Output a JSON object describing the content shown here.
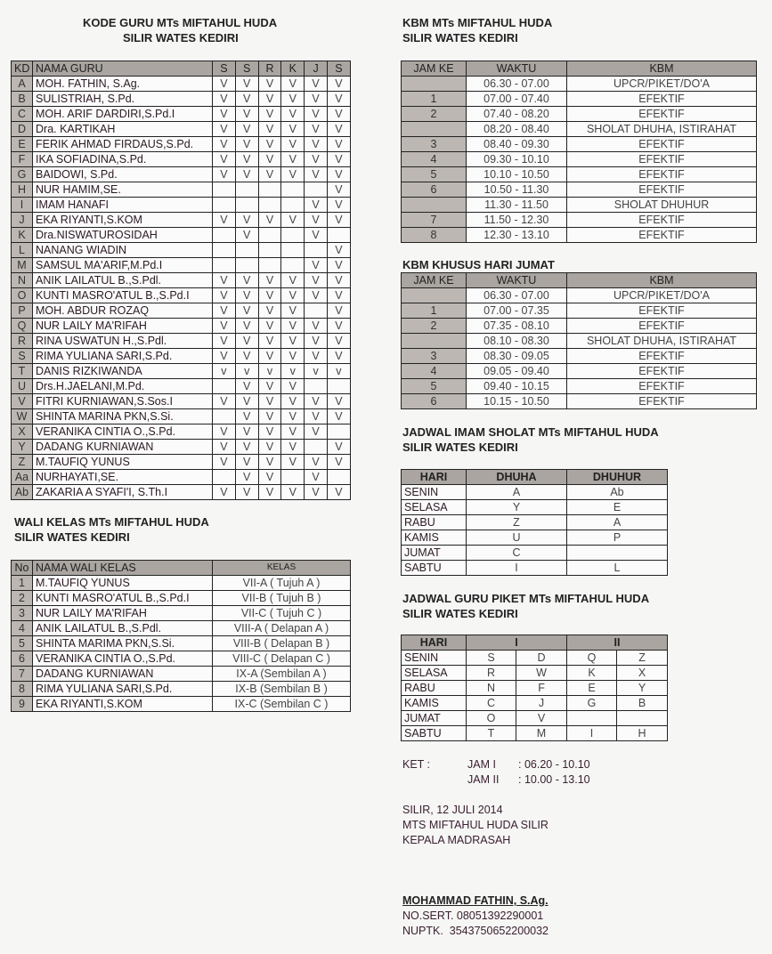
{
  "kode_guru": {
    "title1": "KODE GURU MTs MIFTAHUL HUDA",
    "title2": "SILIR WATES KEDIRI",
    "headers": [
      "KD",
      "NAMA GURU",
      "S",
      "S",
      "R",
      "K",
      "J",
      "S"
    ],
    "rows": [
      [
        "A",
        "MOH. FATHIN, S.Ag.",
        "V",
        "V",
        "V",
        "V",
        "V",
        "V"
      ],
      [
        "B",
        "SULISTRIAH, S.Pd.",
        "V",
        "V",
        "V",
        "V",
        "V",
        "V"
      ],
      [
        "C",
        "MOH. ARIF DARDIRI,S.Pd.I",
        "V",
        "V",
        "V",
        "V",
        "V",
        "V"
      ],
      [
        "D",
        "Dra. KARTIKAH",
        "V",
        "V",
        "V",
        "V",
        "V",
        "V"
      ],
      [
        "E",
        "FERIK AHMAD FIRDAUS,S.Pd.",
        "V",
        "V",
        "V",
        "V",
        "V",
        "V"
      ],
      [
        "F",
        "IKA SOFIADINA,S.Pd.",
        "V",
        "V",
        "V",
        "V",
        "V",
        "V"
      ],
      [
        "G",
        "BAIDOWI, S.Pd.",
        "V",
        "V",
        "V",
        "V",
        "V",
        "V"
      ],
      [
        "H",
        "NUR HAMIM,SE.",
        "",
        "",
        "",
        "",
        "",
        "V"
      ],
      [
        "I",
        "IMAM HANAFI",
        "",
        "",
        "",
        "",
        "V",
        "V"
      ],
      [
        "J",
        "EKA RIYANTI,S.KOM",
        "V",
        "V",
        "V",
        "V",
        "V",
        "V"
      ],
      [
        "K",
        "Dra.NISWATUROSIDAH",
        "",
        "V",
        "",
        "",
        "V",
        ""
      ],
      [
        "L",
        "NANANG WIADIN",
        "",
        "",
        "",
        "",
        "",
        "V"
      ],
      [
        "M",
        "SAMSUL MA'ARIF,M.Pd.I",
        "",
        "",
        "",
        "",
        "V",
        "V"
      ],
      [
        "N",
        "ANIK LAILATUL B.,S.Pdl.",
        "V",
        "V",
        "V",
        "V",
        "V",
        "V"
      ],
      [
        "O",
        "KUNTI MASRO'ATUL B.,S.Pd.I",
        "V",
        "V",
        "V",
        "V",
        "V",
        "V"
      ],
      [
        "P",
        "MOH. ABDUR ROZAQ",
        "V",
        "V",
        "V",
        "V",
        "",
        "V"
      ],
      [
        "Q",
        "NUR LAILY MA'RIFAH",
        "V",
        "V",
        "V",
        "V",
        "V",
        "V"
      ],
      [
        "R",
        "RINA USWATUN H.,S.Pdl.",
        "V",
        "V",
        "V",
        "V",
        "V",
        "V"
      ],
      [
        "S",
        "RIMA YULIANA SARI,S.Pd.",
        "V",
        "V",
        "V",
        "V",
        "V",
        "V"
      ],
      [
        "T",
        "DANIS RIZKIWANDA",
        "v",
        "v",
        "v",
        "v",
        "v",
        "v"
      ],
      [
        "U",
        "Drs.H.JAELANI,M.Pd.",
        "",
        "V",
        "V",
        "V",
        "",
        ""
      ],
      [
        "V",
        "FITRI KURNIAWAN,S.Sos.I",
        "V",
        "V",
        "V",
        "V",
        "V",
        "V"
      ],
      [
        "W",
        "SHINTA MARINA PKN,S.Si.",
        "",
        "V",
        "V",
        "V",
        "V",
        "V"
      ],
      [
        "X",
        "VERANIKA CINTIA O.,S.Pd.",
        "V",
        "V",
        "V",
        "V",
        "V",
        ""
      ],
      [
        "Y",
        "DADANG KURNIAWAN",
        "V",
        "V",
        "V",
        "V",
        "",
        "V"
      ],
      [
        "Z",
        "M.TAUFIQ YUNUS",
        "V",
        "V",
        "V",
        "V",
        "V",
        "V"
      ],
      [
        "Aa",
        "NURHAYATI,SE.",
        "",
        "V",
        "V",
        "",
        "V",
        ""
      ],
      [
        "Ab",
        "ZAKARIA A SYAFI'I, S.Th.I",
        "V",
        "V",
        "V",
        "V",
        "V",
        "V"
      ]
    ]
  },
  "wali_kelas": {
    "title1": "WALI KELAS MTs MIFTAHUL HUDA",
    "title2": "SILIR WATES KEDIRI",
    "headers": [
      "No",
      "NAMA WALI KELAS",
      "KELAS"
    ],
    "rows": [
      [
        "1",
        "M.TAUFIQ YUNUS",
        "VII-A ( Tujuh A )"
      ],
      [
        "2",
        "KUNTI MASRO'ATUL B.,S.Pd.I",
        "VII-B ( Tujuh B )"
      ],
      [
        "3",
        "NUR LAILY MA'RIFAH",
        "VII-C ( Tujuh C )"
      ],
      [
        "4",
        "ANIK LAILATUL B.,S.Pdl.",
        "VIII-A ( Delapan A )"
      ],
      [
        "5",
        "SHINTA MARIMA PKN,S.Si.",
        "VIII-B ( Delapan B )"
      ],
      [
        "6",
        "VERANIKA CINTIA O.,S.Pd.",
        "VIII-C ( Delapan C )"
      ],
      [
        "7",
        "DADANG KURNIAWAN",
        "IX-A (Sembilan A )"
      ],
      [
        "8",
        "RIMA YULIANA SARI,S.Pd.",
        "IX-B (Sembilan B )"
      ],
      [
        "9",
        "EKA RIYANTI,S.KOM",
        "IX-C (Sembilan C )"
      ]
    ]
  },
  "kbm": {
    "title1": "KBM MTs MIFTAHUL HUDA",
    "title2": "SILIR WATES KEDIRI",
    "headers": [
      "JAM KE",
      "WAKTU",
      "KBM"
    ],
    "rows": [
      [
        "",
        "06.30 - 07.00",
        "UPCR/PIKET/DO'A"
      ],
      [
        "1",
        "07.00 - 07.40",
        "EFEKTIF"
      ],
      [
        "2",
        "07.40 - 08.20",
        "EFEKTIF"
      ],
      [
        "",
        "08.20 - 08.40",
        "SHOLAT DHUHA, ISTIRAHAT"
      ],
      [
        "3",
        "08.40 - 09.30",
        "EFEKTIF"
      ],
      [
        "4",
        "09.30 - 10.10",
        "EFEKTIF"
      ],
      [
        "5",
        "10.10 - 10.50",
        "EFEKTIF"
      ],
      [
        "6",
        "10.50 - 11.30",
        "EFEKTIF"
      ],
      [
        "",
        "11.30 - 11.50",
        "SHOLAT DHUHUR"
      ],
      [
        "7",
        "11.50 - 12.30",
        "EFEKTIF"
      ],
      [
        "8",
        "12.30 - 13.10",
        "EFEKTIF"
      ]
    ]
  },
  "kbm_jumat": {
    "title1": "KBM KHUSUS HARI JUMAT",
    "headers": [
      "JAM KE",
      "WAKTU",
      "KBM"
    ],
    "rows": [
      [
        "",
        "06.30 - 07.00",
        "UPCR/PIKET/DO'A"
      ],
      [
        "1",
        "07.00 - 07.35",
        "EFEKTIF"
      ],
      [
        "2",
        "07.35 - 08.10",
        "EFEKTIF"
      ],
      [
        "",
        "08.10 - 08.30",
        "SHOLAT DHUHA, ISTIRAHAT"
      ],
      [
        "3",
        "08.30 - 09.05",
        "EFEKTIF"
      ],
      [
        "4",
        "09.05 - 09.40",
        "EFEKTIF"
      ],
      [
        "5",
        "09.40 - 10.15",
        "EFEKTIF"
      ],
      [
        "6",
        "10.15 - 10.50",
        "EFEKTIF"
      ]
    ]
  },
  "imam": {
    "title1": "JADWAL IMAM SHOLAT MTs MIFTAHUL HUDA",
    "title2": "SILIR WATES KEDIRI",
    "headers": [
      "HARI",
      "DHUHA",
      "DHUHUR"
    ],
    "rows": [
      [
        "SENIN",
        "A",
        "Ab"
      ],
      [
        "SELASA",
        "Y",
        "E"
      ],
      [
        "RABU",
        "Z",
        "A"
      ],
      [
        "KAMIS",
        "U",
        "P"
      ],
      [
        "JUMAT",
        "C",
        ""
      ],
      [
        "SABTU",
        "I",
        "L"
      ]
    ]
  },
  "piket": {
    "title1": "JADWAL GURU PIKET MTs MIFTAHUL HUDA",
    "title2": "SILIR WATES KEDIRI",
    "headers": [
      "HARI",
      "I",
      "II"
    ],
    "rows": [
      [
        "SENIN",
        "S",
        "D",
        "Q",
        "Z"
      ],
      [
        "SELASA",
        "R",
        "W",
        "K",
        "X"
      ],
      [
        "RABU",
        "N",
        "F",
        "E",
        "Y"
      ],
      [
        "KAMIS",
        "C",
        "J",
        "G",
        "B"
      ],
      [
        "JUMAT",
        "O",
        "V",
        "",
        ""
      ],
      [
        "SABTU",
        "T",
        "M",
        "I",
        "H"
      ]
    ]
  },
  "ket": {
    "label": "KET :",
    "jam1": "JAM I",
    "jam1_time": ": 06.20 - 10.10",
    "jam2": "JAM II",
    "jam2_time": ": 10.00 - 13.10"
  },
  "signature": {
    "place_date": "SILIR, 12 JULI 2014",
    "school": "MTS MIFTAHUL HUDA SILIR",
    "position": "KEPALA MADRASAH",
    "name": "MOHAMMAD FATHIN, S.Ag.",
    "nosert": "NO.SERT. 08051392290001",
    "nuptk": "NUPTK.  3543750652200032"
  }
}
